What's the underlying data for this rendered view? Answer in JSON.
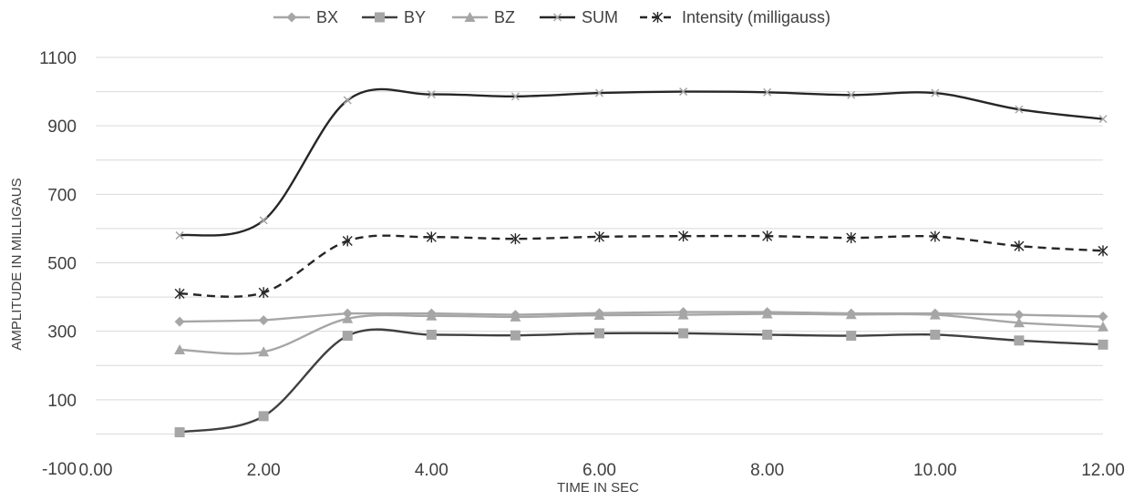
{
  "chart_data": {
    "type": "line",
    "xlabel": "TIME IN SEC",
    "ylabel": "AMPLITUDE IN MILLIGAUS",
    "xlim": [
      0,
      12
    ],
    "ylim": [
      -100,
      1100
    ],
    "x_ticks": [
      0,
      2,
      4,
      6,
      8,
      10,
      12
    ],
    "x_tick_labels": [
      "0.00",
      "2.00",
      "4.00",
      "6.00",
      "8.00",
      "10.00",
      "12.00"
    ],
    "y_ticks": [
      -100,
      100,
      300,
      500,
      700,
      900,
      1100
    ],
    "y_tick_labels": [
      "-100",
      "100",
      "300",
      "500",
      "700",
      "900",
      "1100"
    ],
    "y_gridlines": [
      0,
      100,
      200,
      300,
      400,
      500,
      600,
      700,
      800,
      900,
      1000,
      1100
    ],
    "grid": true,
    "legend_position": "top",
    "x": [
      1,
      2,
      3,
      4,
      5,
      6,
      7,
      8,
      9,
      10,
      11,
      12
    ],
    "series": [
      {
        "name": "BX",
        "marker": "diamond",
        "color": "#a6a6a6",
        "dash": "",
        "smooth": false,
        "values": [
          328,
          332,
          352,
          352,
          348,
          353,
          356,
          356,
          352,
          352,
          348,
          343
        ]
      },
      {
        "name": "BY",
        "marker": "square",
        "color": "#404040",
        "dash": "",
        "smooth": true,
        "values": [
          5,
          52,
          287,
          290,
          288,
          294,
          294,
          290,
          287,
          290,
          273,
          261
        ]
      },
      {
        "name": "BZ",
        "marker": "triangle",
        "color": "#a6a6a6",
        "dash": "",
        "smooth": true,
        "values": [
          246,
          240,
          337,
          345,
          342,
          347,
          348,
          351,
          349,
          348,
          325,
          313
        ]
      },
      {
        "name": "SUM",
        "marker": "x",
        "color": "#262626",
        "dash": "",
        "smooth": true,
        "values": [
          580,
          624,
          975,
          992,
          986,
          996,
          1000,
          998,
          990,
          996,
          948,
          920
        ]
      },
      {
        "name": "Intensity (milligauss)",
        "marker": "asterisk",
        "color": "#262626",
        "dash": "9,6",
        "smooth": true,
        "values": [
          410,
          413,
          564,
          575,
          570,
          576,
          578,
          578,
          573,
          577,
          549,
          535
        ]
      }
    ]
  }
}
